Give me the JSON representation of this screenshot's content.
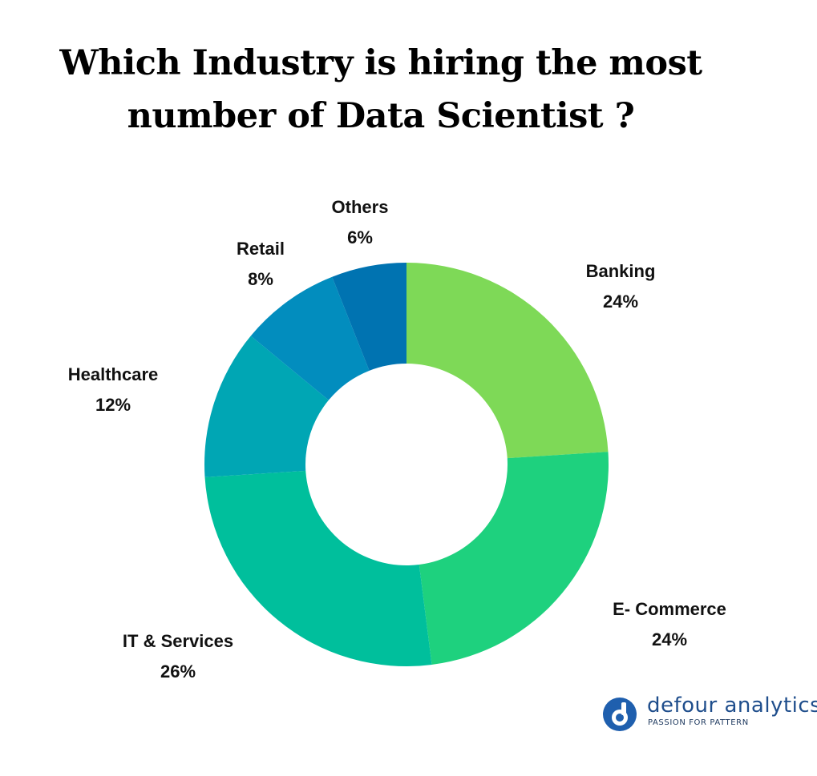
{
  "title_line1": "Which Industry is hiring the most",
  "title_line2": "number of Data Scientist ?",
  "chart_data": {
    "type": "pie",
    "donut": true,
    "title": "Which Industry is hiring the most number of Data Scientist ?",
    "labels": [
      "Banking",
      "E- Commerce",
      "IT & Services",
      "Healthcare",
      "Retail",
      "Others"
    ],
    "values": [
      24,
      24,
      26,
      12,
      8,
      6
    ],
    "value_labels": [
      "24%",
      "24%",
      "26%",
      "12%",
      "8%",
      "6%"
    ],
    "colors": [
      "#7ed957",
      "#1ed17e",
      "#00bf9c",
      "#00a6b4",
      "#028dbe",
      "#0073b1"
    ],
    "start_angle": "12 o'clock",
    "direction": "clockwise",
    "legend": "none"
  },
  "brand": {
    "name": "defour analytics",
    "tagline": "PASSION FOR PATTERN",
    "color": "#1f4e8c"
  }
}
